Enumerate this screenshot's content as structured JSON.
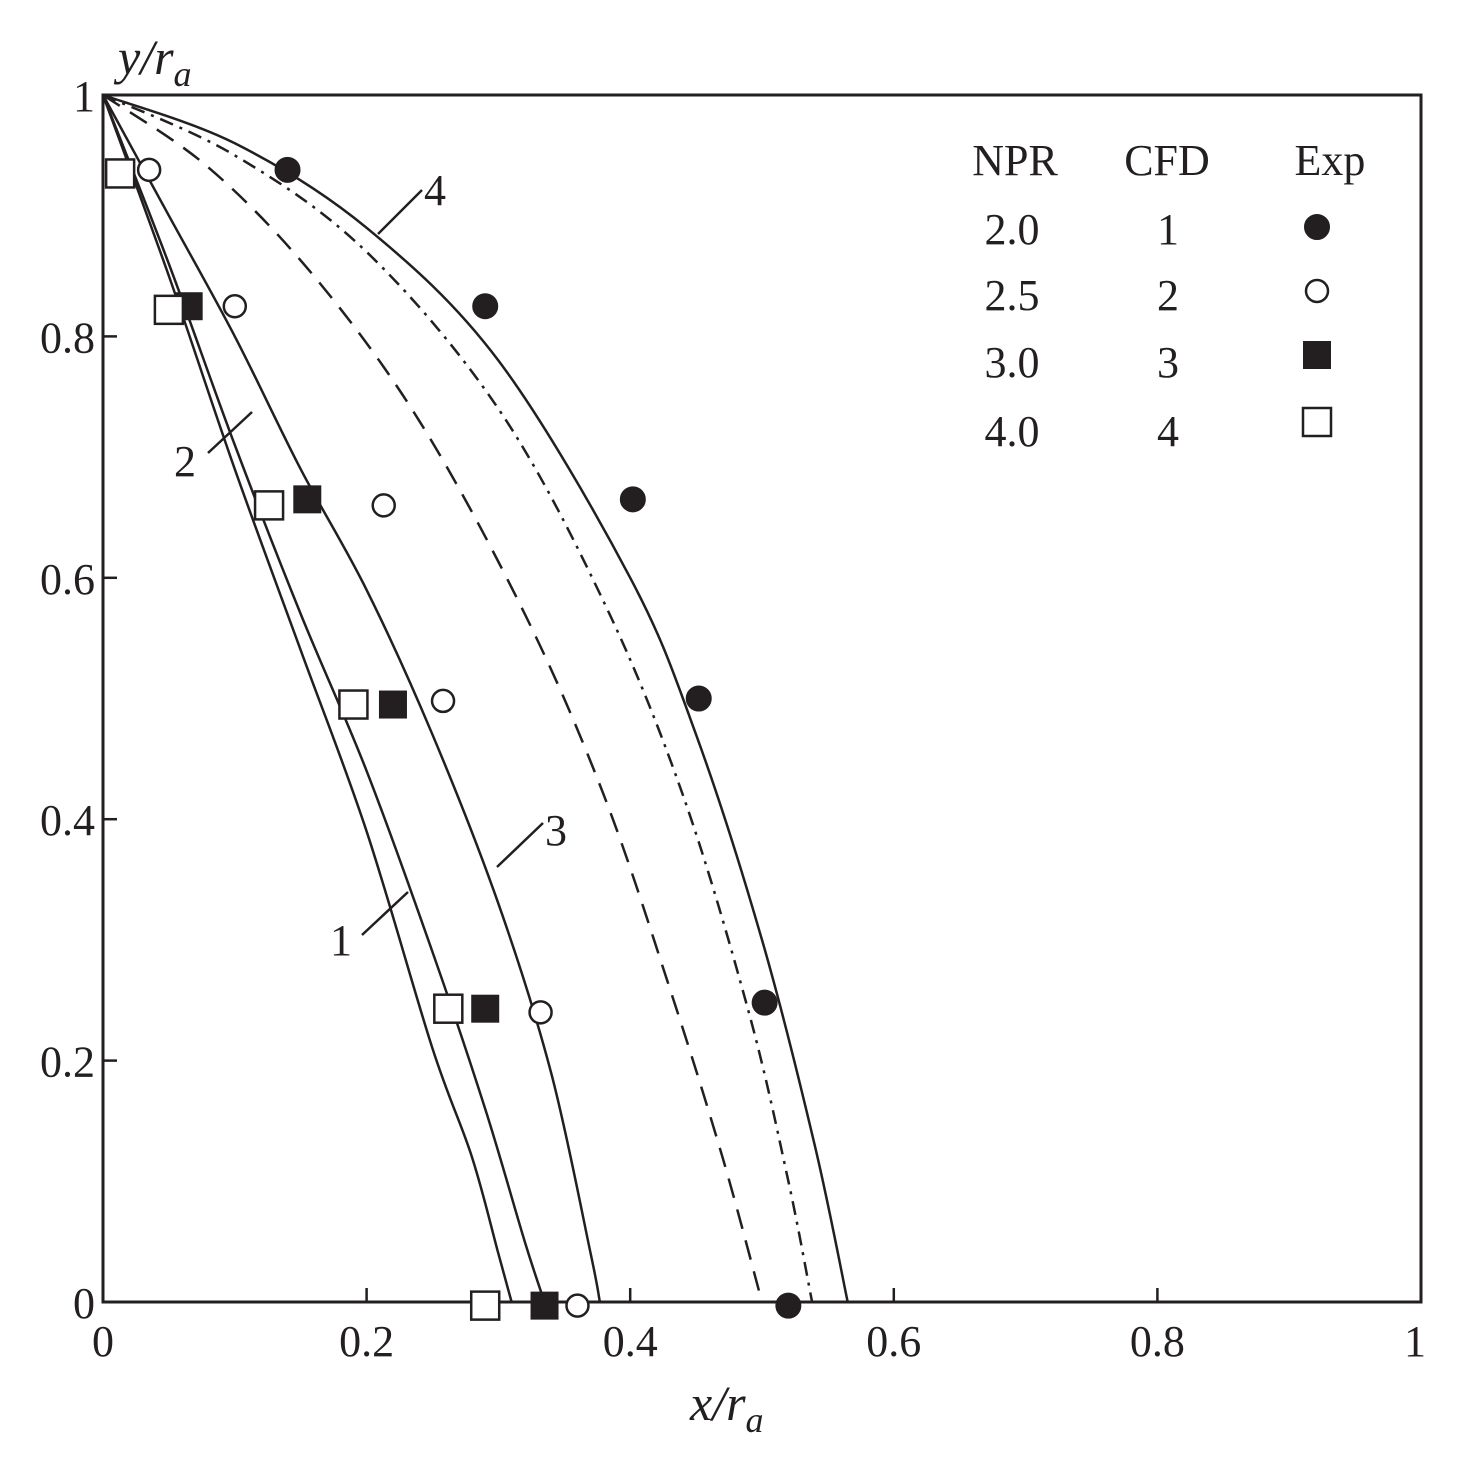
{
  "chart_data": {
    "type": "scatter",
    "xlabel": {
      "main": "x/r",
      "sub": "a"
    },
    "ylabel": {
      "main": "y/r",
      "sub": "a"
    },
    "xlim": [
      0,
      1
    ],
    "ylim": [
      0,
      1
    ],
    "x_ticks": [
      {
        "value": 0,
        "label": "0"
      },
      {
        "value": 0.2,
        "label": "0.2"
      },
      {
        "value": 0.4,
        "label": "0.4"
      },
      {
        "value": 0.6,
        "label": "0.6"
      },
      {
        "value": 0.8,
        "label": "0.8"
      },
      {
        "value": 1,
        "label": "1"
      }
    ],
    "y_ticks": [
      {
        "value": 0,
        "label": "0"
      },
      {
        "value": 0.2,
        "label": "0.2"
      },
      {
        "value": 0.4,
        "label": "0.4"
      },
      {
        "value": 0.6,
        "label": "0.6"
      },
      {
        "value": 0.8,
        "label": "0.8"
      },
      {
        "value": 1,
        "label": "1"
      }
    ],
    "grid": false,
    "legend": {
      "placement": "top-right",
      "headers": [
        "NPR",
        "CFD",
        "Exp"
      ],
      "rows": [
        {
          "npr": "2.0",
          "cfd": "1",
          "marker": "filled-circle"
        },
        {
          "npr": "2.5",
          "cfd": "2",
          "marker": "open-circle"
        },
        {
          "npr": "3.0",
          "cfd": "3",
          "marker": "filled-square"
        },
        {
          "npr": "4.0",
          "cfd": "4",
          "marker": "open-square"
        }
      ]
    },
    "curves": [
      {
        "label": "1",
        "style": "solid",
        "x": [
          0,
          0.05,
          0.1,
          0.15,
          0.2,
          0.25,
          0.28,
          0.3,
          0.31
        ],
        "y": [
          1,
          0.85,
          0.69,
          0.54,
          0.39,
          0.21,
          0.12,
          0.04,
          0
        ]
      },
      {
        "label": "2",
        "style": "solid",
        "x": [
          0,
          0.05,
          0.1,
          0.15,
          0.2,
          0.25,
          0.29,
          0.32,
          0.335
        ],
        "y": [
          1,
          0.86,
          0.71,
          0.57,
          0.44,
          0.29,
          0.16,
          0.05,
          0
        ]
      },
      {
        "label": "3",
        "style": "solid",
        "x": [
          0,
          0.05,
          0.1,
          0.15,
          0.2,
          0.25,
          0.3,
          0.34,
          0.37,
          0.377
        ],
        "y": [
          1,
          0.9,
          0.8,
          0.69,
          0.59,
          0.47,
          0.33,
          0.19,
          0.04,
          0
        ]
      },
      {
        "label": "4",
        "style": "solid",
        "x": [
          0,
          0.1,
          0.2,
          0.3,
          0.4,
          0.45,
          0.5,
          0.54,
          0.565
        ],
        "y": [
          1,
          0.96,
          0.89,
          0.78,
          0.6,
          0.47,
          0.3,
          0.13,
          0
        ]
      },
      {
        "label": "",
        "style": "dash-dot",
        "x": [
          0,
          0.1,
          0.2,
          0.3,
          0.38,
          0.44,
          0.49,
          0.52,
          0.538
        ],
        "y": [
          1,
          0.95,
          0.87,
          0.74,
          0.58,
          0.42,
          0.24,
          0.1,
          0
        ]
      },
      {
        "label": "",
        "style": "dashed",
        "x": [
          0,
          0.08,
          0.16,
          0.24,
          0.32,
          0.38,
          0.43,
          0.47,
          0.5
        ],
        "y": [
          1,
          0.94,
          0.85,
          0.73,
          0.57,
          0.42,
          0.26,
          0.12,
          0
        ]
      }
    ],
    "experimental_series": [
      {
        "npr": "2.0",
        "marker": "filled-circle",
        "points": [
          [
            0.14,
            0.938
          ],
          [
            0.29,
            0.825
          ],
          [
            0.402,
            0.665
          ],
          [
            0.452,
            0.5
          ],
          [
            0.502,
            0.248
          ],
          [
            0.52,
            -0.003
          ]
        ]
      },
      {
        "npr": "2.5",
        "marker": "open-circle",
        "points": [
          [
            0.035,
            0.938
          ],
          [
            0.1,
            0.825
          ],
          [
            0.213,
            0.66
          ],
          [
            0.258,
            0.498
          ],
          [
            0.332,
            0.24
          ],
          [
            0.36,
            -0.003
          ]
        ]
      },
      {
        "npr": "3.0",
        "marker": "filled-square",
        "points": [
          [
            0.065,
            0.825
          ],
          [
            0.155,
            0.665
          ],
          [
            0.22,
            0.495
          ],
          [
            0.29,
            0.243
          ],
          [
            0.335,
            -0.003
          ]
        ]
      },
      {
        "npr": "4.0",
        "marker": "open-square",
        "points": [
          [
            0.013,
            0.935
          ],
          [
            0.05,
            0.822
          ],
          [
            0.126,
            0.66
          ],
          [
            0.19,
            0.495
          ],
          [
            0.262,
            0.243
          ],
          [
            0.29,
            -0.003
          ]
        ]
      }
    ]
  }
}
